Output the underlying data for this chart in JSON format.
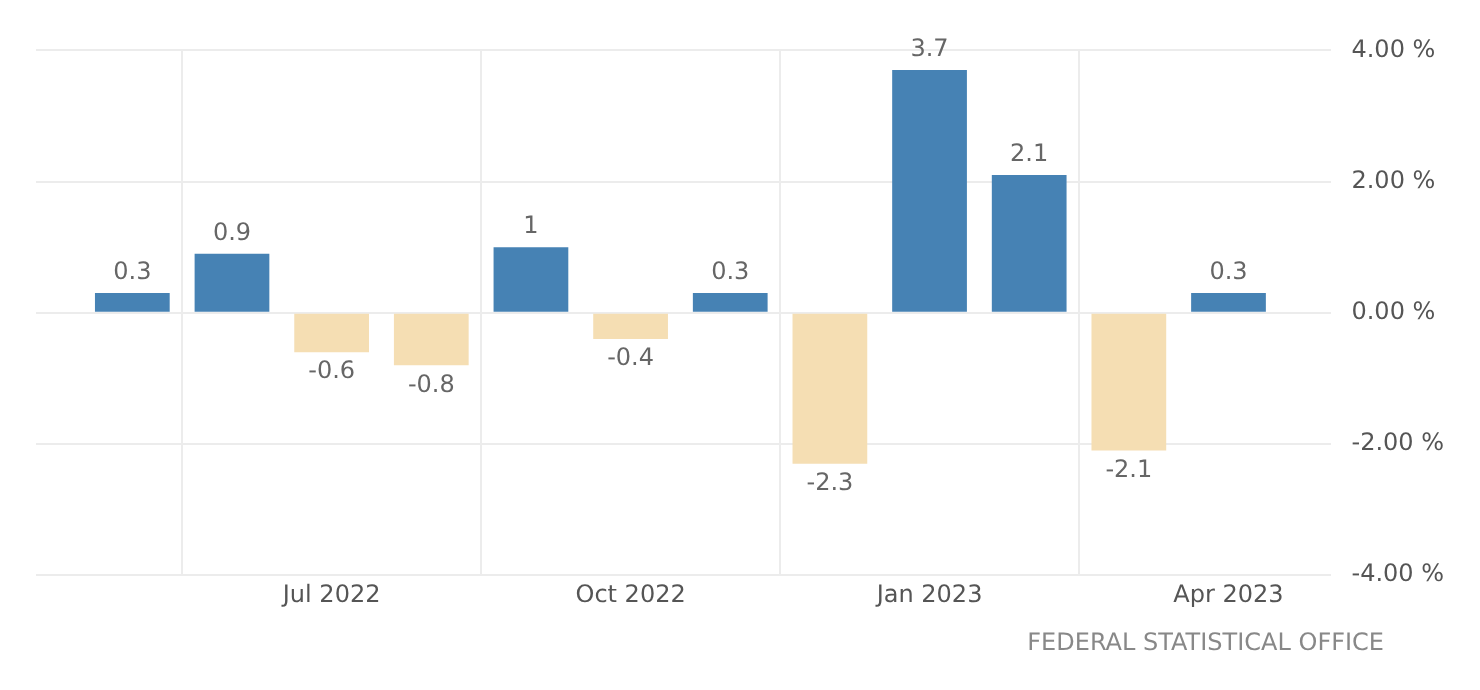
{
  "chart_data": {
    "type": "bar",
    "x": [
      "2022-05",
      "2022-06",
      "2022-07",
      "2022-08",
      "2022-09",
      "2022-10",
      "2022-11",
      "2022-12",
      "2023-01",
      "2023-02",
      "2023-03",
      "2023-04"
    ],
    "values": [
      0.3,
      0.9,
      -0.6,
      -0.8,
      1,
      -0.4,
      0.3,
      -2.3,
      3.7,
      2.1,
      -2.1,
      0.3
    ],
    "colors": [
      "#4682b4",
      "#4682b4",
      "#f5deb3",
      "#f5deb3",
      "#4682b4",
      "#f5deb3",
      "#4682b4",
      "#f5deb3",
      "#4682b4",
      "#4682b4",
      "#f5deb3",
      "#4682b4"
    ],
    "data_labels": true,
    "xlim": [
      "2022-04-02",
      "2023-05-02"
    ],
    "xticks": [
      {
        "value": "2022-07",
        "label": "Jul 2022"
      },
      {
        "value": "2022-10",
        "label": "Oct 2022"
      },
      {
        "value": "2023-01",
        "label": "Jan 2023"
      },
      {
        "value": "2023-04",
        "label": "Apr 2023"
      }
    ],
    "ylim": [
      -4,
      4
    ],
    "yticks": [
      {
        "value": -4,
        "label": "-4.00 %"
      },
      {
        "value": -2,
        "label": "-2.00 %"
      },
      {
        "value": 0,
        "label": "0.00 %"
      },
      {
        "value": 2,
        "label": "2.00 %"
      },
      {
        "value": 4,
        "label": "4.00 %"
      }
    ],
    "grid": true,
    "annotations": [
      "FEDERAL STATISTICAL OFFICE"
    ]
  }
}
